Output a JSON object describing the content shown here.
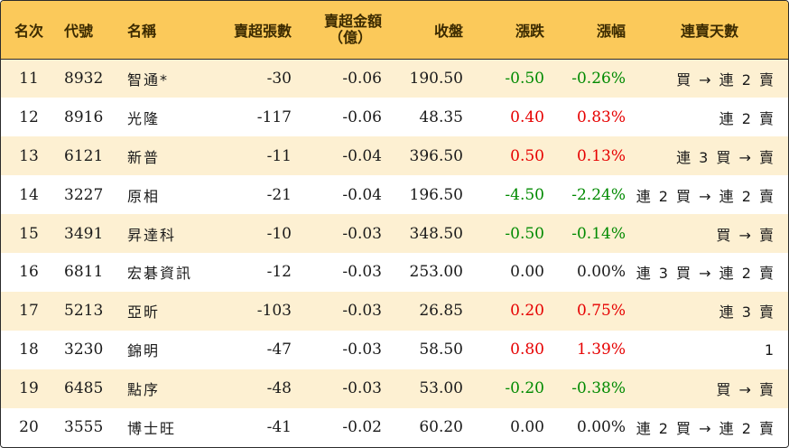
{
  "headers": {
    "rank": "名次",
    "code": "代號",
    "name": "名稱",
    "net_sell_lots": "賣超張數",
    "net_sell_amount_line1": "賣超金額",
    "net_sell_amount_line2": "（億）",
    "close": "收盤",
    "change": "漲跌",
    "change_pct": "漲幅",
    "streak": "連賣天數"
  },
  "rows": [
    {
      "rank": "11",
      "code": "8932",
      "name": "智通*",
      "lots": "-30",
      "amount": "-0.06",
      "close": "190.50",
      "change": "-0.50",
      "pct": "-0.26%",
      "dir": "neg",
      "streak": "買 → 連 2 賣"
    },
    {
      "rank": "12",
      "code": "8916",
      "name": "光隆",
      "lots": "-117",
      "amount": "-0.06",
      "close": "48.35",
      "change": "0.40",
      "pct": "0.83%",
      "dir": "pos",
      "streak": "連 2 賣"
    },
    {
      "rank": "13",
      "code": "6121",
      "name": "新普",
      "lots": "-11",
      "amount": "-0.04",
      "close": "396.50",
      "change": "0.50",
      "pct": "0.13%",
      "dir": "pos",
      "streak": "連 3 買 → 賣"
    },
    {
      "rank": "14",
      "code": "3227",
      "name": "原相",
      "lots": "-21",
      "amount": "-0.04",
      "close": "196.50",
      "change": "-4.50",
      "pct": "-2.24%",
      "dir": "neg",
      "streak": "連 2 買 → 連 2 賣"
    },
    {
      "rank": "15",
      "code": "3491",
      "name": "昇達科",
      "lots": "-10",
      "amount": "-0.03",
      "close": "348.50",
      "change": "-0.50",
      "pct": "-0.14%",
      "dir": "neg",
      "streak": "買 → 賣"
    },
    {
      "rank": "16",
      "code": "6811",
      "name": "宏碁資訊",
      "lots": "-12",
      "amount": "-0.03",
      "close": "253.00",
      "change": "0.00",
      "pct": "0.00%",
      "dir": "flat",
      "streak": "連 3 買 → 連 2 賣"
    },
    {
      "rank": "17",
      "code": "5213",
      "name": "亞昕",
      "lots": "-103",
      "amount": "-0.03",
      "close": "26.85",
      "change": "0.20",
      "pct": "0.75%",
      "dir": "pos",
      "streak": "連 3 賣"
    },
    {
      "rank": "18",
      "code": "3230",
      "name": "錦明",
      "lots": "-47",
      "amount": "-0.03",
      "close": "58.50",
      "change": "0.80",
      "pct": "1.39%",
      "dir": "pos",
      "streak": "1"
    },
    {
      "rank": "19",
      "code": "6485",
      "name": "點序",
      "lots": "-48",
      "amount": "-0.03",
      "close": "53.00",
      "change": "-0.20",
      "pct": "-0.38%",
      "dir": "neg",
      "streak": "買 → 賣"
    },
    {
      "rank": "20",
      "code": "3555",
      "name": "博士旺",
      "lots": "-41",
      "amount": "-0.02",
      "close": "60.20",
      "change": "0.00",
      "pct": "0.00%",
      "dir": "flat",
      "streak": "連 2 買 → 連 2 賣"
    }
  ],
  "colors": {
    "header_bg": "#fbc95a",
    "stripe": "#fdf0d2",
    "up": "#e60000",
    "down": "#008a00"
  }
}
